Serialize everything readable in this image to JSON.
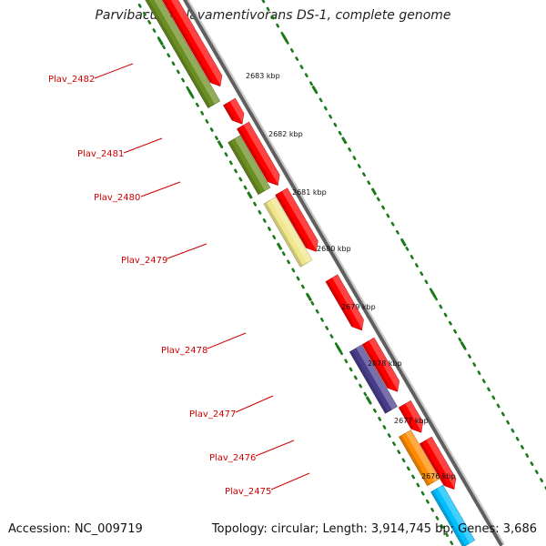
{
  "title": "Parvibaculum lavamentivorans DS-1, complete genome",
  "accession": "Accession: NC_009719",
  "topology": "Topology: circular; Length: 3,914,745 bp; Genes: 3,686",
  "colors": {
    "backbone": "#8c8c8c",
    "ticks": "#1a7a1a",
    "label": "#d00000",
    "olive": "#6b8e23",
    "red": "#ff0000",
    "pale_yellow": "#f0e68c",
    "purple": "#483d8b",
    "orange": "#ff8c00",
    "cyan": "#00bfff"
  },
  "scale_labels": [
    "2683 kbp",
    "2682 kbp",
    "2681 kbp",
    "2680 kbp",
    "2679 kbp",
    "2678 kbp",
    "2677 kbp",
    "2676 kbp"
  ],
  "gene_labels": [
    "Plav_2482",
    "Plav_2481",
    "Plav_2480",
    "Plav_2479",
    "Plav_2478",
    "Plav_2477",
    "Plav_2476",
    "Plav_2475"
  ]
}
